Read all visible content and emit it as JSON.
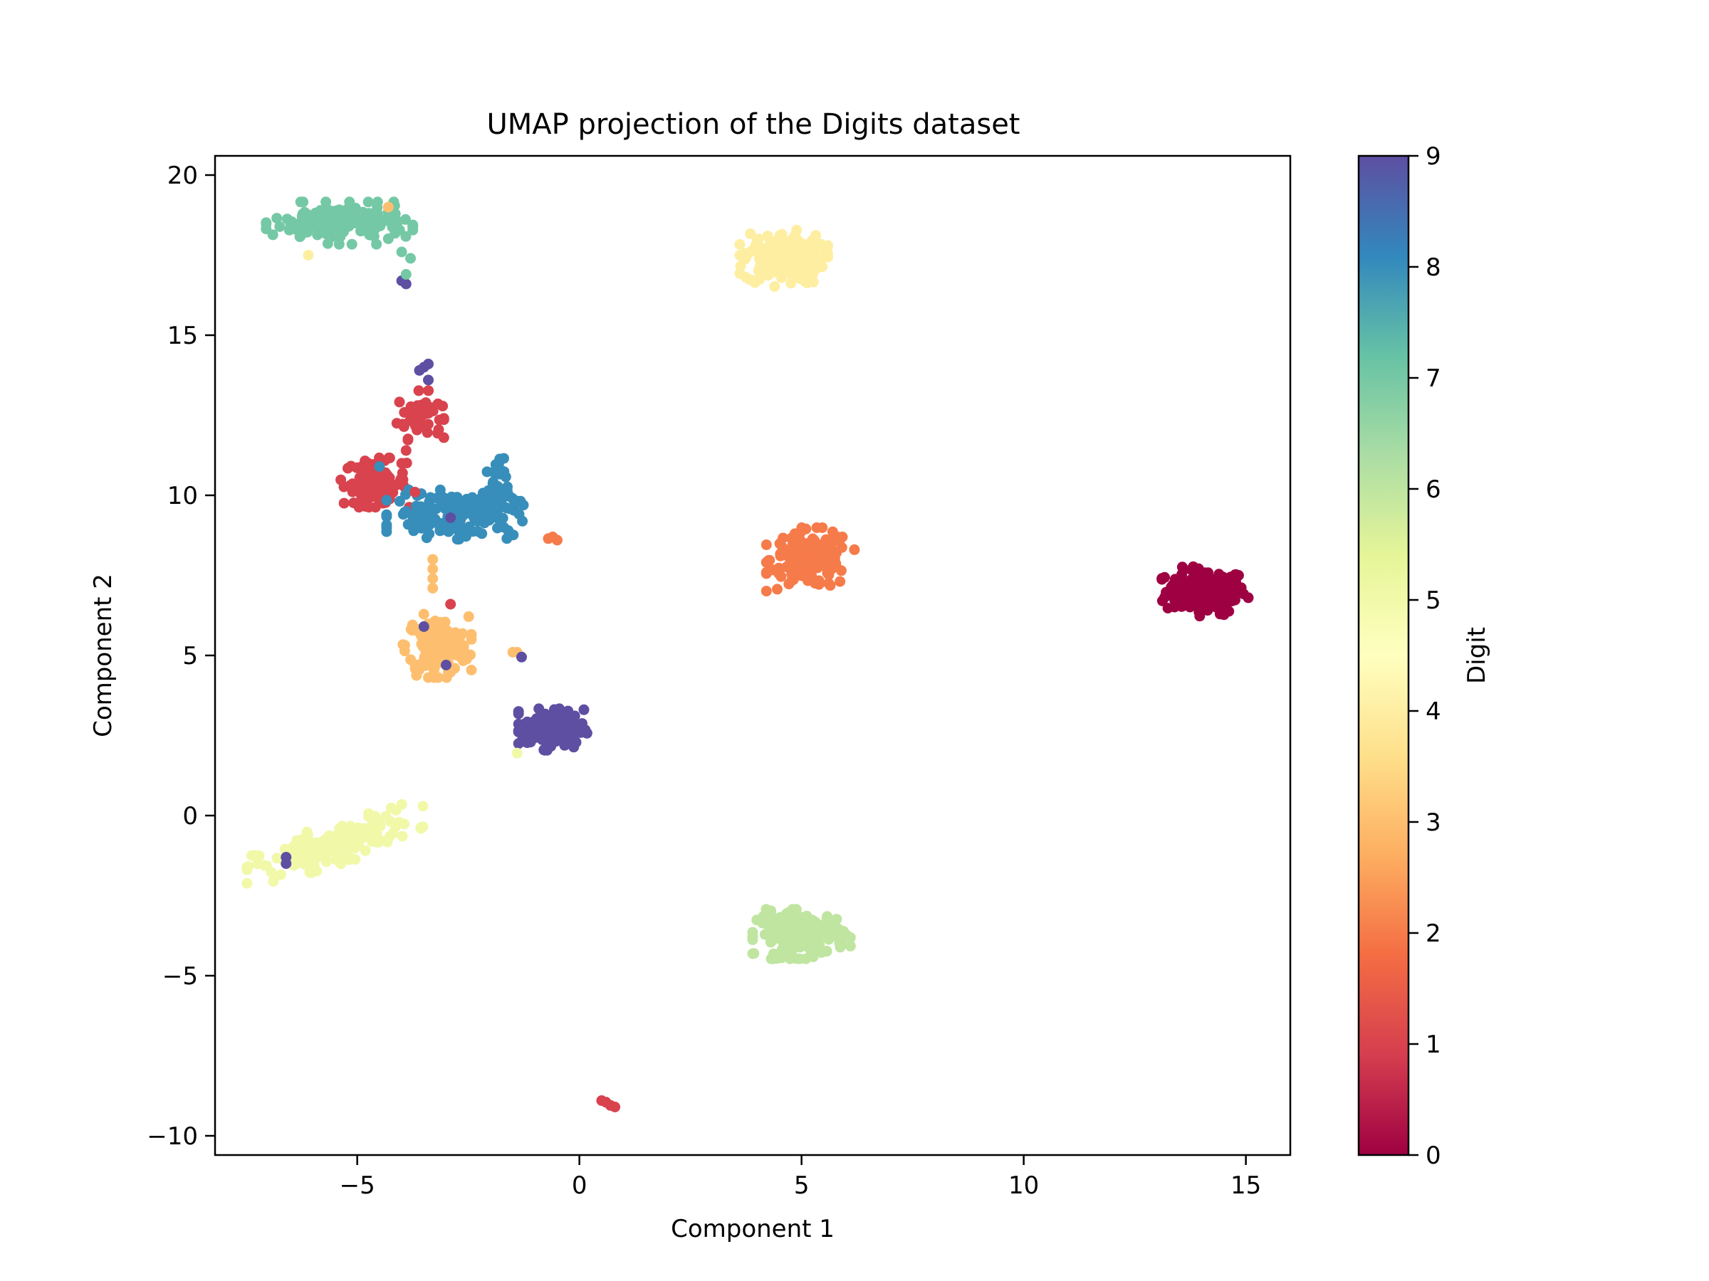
{
  "chart_data": {
    "type": "scatter",
    "title": "UMAP projection of the Digits dataset",
    "xlabel": "Component 1",
    "ylabel": "Component 2",
    "xlim": [
      -8.2,
      16.0
    ],
    "ylim": [
      -10.6,
      20.6
    ],
    "xticks": [
      -5,
      0,
      5,
      10,
      15
    ],
    "xtick_labels": [
      "−5",
      "0",
      "5",
      "10",
      "15"
    ],
    "yticks": [
      -10,
      -5,
      0,
      5,
      10,
      15,
      20
    ],
    "ytick_labels": [
      "−10",
      "−5",
      "0",
      "5",
      "10",
      "15",
      "20"
    ],
    "grid": false,
    "colormap": "Spectral",
    "colorbar": {
      "label": "Digit",
      "min": 0,
      "max": 9,
      "ticks": [
        0,
        1,
        2,
        3,
        4,
        5,
        6,
        7,
        8,
        9
      ],
      "tick_labels": [
        "0",
        "1",
        "2",
        "3",
        "4",
        "5",
        "6",
        "7",
        "8",
        "9"
      ],
      "colors": [
        "#9e0142",
        "#d53e4f",
        "#f46d43",
        "#fdae61",
        "#fee08b",
        "#ffffbf",
        "#e6f598",
        "#abdda4",
        "#66c2a5",
        "#3288bd",
        "#5e4fa2"
      ]
    },
    "clusters": [
      {
        "digit": 0,
        "center": [
          14.1,
          7.0
        ],
        "spread": [
          0.45,
          0.35
        ],
        "count": 180
      },
      {
        "digit": 1,
        "center": [
          -3.6,
          12.5
        ],
        "spread": [
          0.25,
          0.35
        ],
        "count": 50
      },
      {
        "digit": 1,
        "center": [
          -4.6,
          10.4
        ],
        "spread": [
          0.35,
          0.35
        ],
        "count": 100
      },
      {
        "digit": 2,
        "center": [
          5.2,
          8.0
        ],
        "spread": [
          0.45,
          0.45
        ],
        "count": 170
      },
      {
        "digit": 3,
        "center": [
          -3.2,
          5.3
        ],
        "spread": [
          0.35,
          0.45
        ],
        "count": 160
      },
      {
        "digit": 4,
        "center": [
          4.6,
          17.4
        ],
        "spread": [
          0.45,
          0.4
        ],
        "count": 175
      },
      {
        "digit": 5,
        "center": [
          -5.5,
          -0.9
        ],
        "spread": [
          0.9,
          0.3
        ],
        "count": 170
      },
      {
        "digit": 6,
        "center": [
          5.0,
          -3.7
        ],
        "spread": [
          0.5,
          0.35
        ],
        "count": 170
      },
      {
        "digit": 7,
        "center": [
          -5.4,
          18.5
        ],
        "spread": [
          0.75,
          0.3
        ],
        "count": 175
      },
      {
        "digit": 8,
        "center": [
          -2.8,
          9.4
        ],
        "spread": [
          0.7,
          0.35
        ],
        "count": 150
      },
      {
        "digit": 8,
        "center": [
          -1.9,
          10.1
        ],
        "spread": [
          0.15,
          0.5
        ],
        "count": 40
      },
      {
        "digit": 9,
        "center": [
          -0.6,
          2.7
        ],
        "spread": [
          0.35,
          0.3
        ],
        "count": 175
      }
    ],
    "extra_points": [
      {
        "digit": 9,
        "x": -3.9,
        "y": 16.6
      },
      {
        "digit": 9,
        "x": -4.0,
        "y": 16.7
      },
      {
        "digit": 7,
        "x": -3.9,
        "y": 16.9
      },
      {
        "digit": 7,
        "x": -3.8,
        "y": 17.4
      },
      {
        "digit": 7,
        "x": -4.0,
        "y": 17.6
      },
      {
        "digit": 4,
        "x": -6.1,
        "y": 17.5
      },
      {
        "digit": 3,
        "x": -4.3,
        "y": 19.0
      },
      {
        "digit": 9,
        "x": -3.4,
        "y": 14.1
      },
      {
        "digit": 9,
        "x": -3.5,
        "y": 14.0
      },
      {
        "digit": 9,
        "x": -3.6,
        "y": 13.9
      },
      {
        "digit": 9,
        "x": -3.4,
        "y": 13.6
      },
      {
        "digit": 1,
        "x": -3.9,
        "y": 11.4
      },
      {
        "digit": 1,
        "x": -4.0,
        "y": 11.0
      },
      {
        "digit": 1,
        "x": -3.7,
        "y": 10.1
      },
      {
        "digit": 8,
        "x": -4.5,
        "y": 10.9
      },
      {
        "digit": 8,
        "x": -3.9,
        "y": 9.5
      },
      {
        "digit": 8,
        "x": -3.6,
        "y": 9.3
      },
      {
        "digit": 8,
        "x": -1.7,
        "y": 9.0
      },
      {
        "digit": 8,
        "x": -1.6,
        "y": 8.9
      },
      {
        "digit": 9,
        "x": -2.9,
        "y": 9.3
      },
      {
        "digit": 2,
        "x": -0.6,
        "y": 8.7
      },
      {
        "digit": 2,
        "x": -0.7,
        "y": 8.65
      },
      {
        "digit": 2,
        "x": -0.5,
        "y": 8.6
      },
      {
        "digit": 3,
        "x": -3.3,
        "y": 8.0
      },
      {
        "digit": 3,
        "x": -3.3,
        "y": 7.7
      },
      {
        "digit": 3,
        "x": -3.3,
        "y": 7.4
      },
      {
        "digit": 3,
        "x": -3.3,
        "y": 7.1
      },
      {
        "digit": 1,
        "x": -2.9,
        "y": 6.6
      },
      {
        "digit": 9,
        "x": -3.5,
        "y": 5.9
      },
      {
        "digit": 9,
        "x": -3.0,
        "y": 4.7
      },
      {
        "digit": 3,
        "x": -1.5,
        "y": 5.1
      },
      {
        "digit": 3,
        "x": -1.4,
        "y": 5.1
      },
      {
        "digit": 9,
        "x": -1.3,
        "y": 4.95
      },
      {
        "digit": 5,
        "x": -1.4,
        "y": 1.95
      },
      {
        "digit": 9,
        "x": -6.6,
        "y": -1.3
      },
      {
        "digit": 9,
        "x": -6.6,
        "y": -1.5
      },
      {
        "digit": 1,
        "x": 0.5,
        "y": -8.9
      },
      {
        "digit": 1,
        "x": 0.6,
        "y": -8.95
      },
      {
        "digit": 1,
        "x": 0.7,
        "y": -9.05
      },
      {
        "digit": 1,
        "x": 0.8,
        "y": -9.1
      }
    ]
  }
}
